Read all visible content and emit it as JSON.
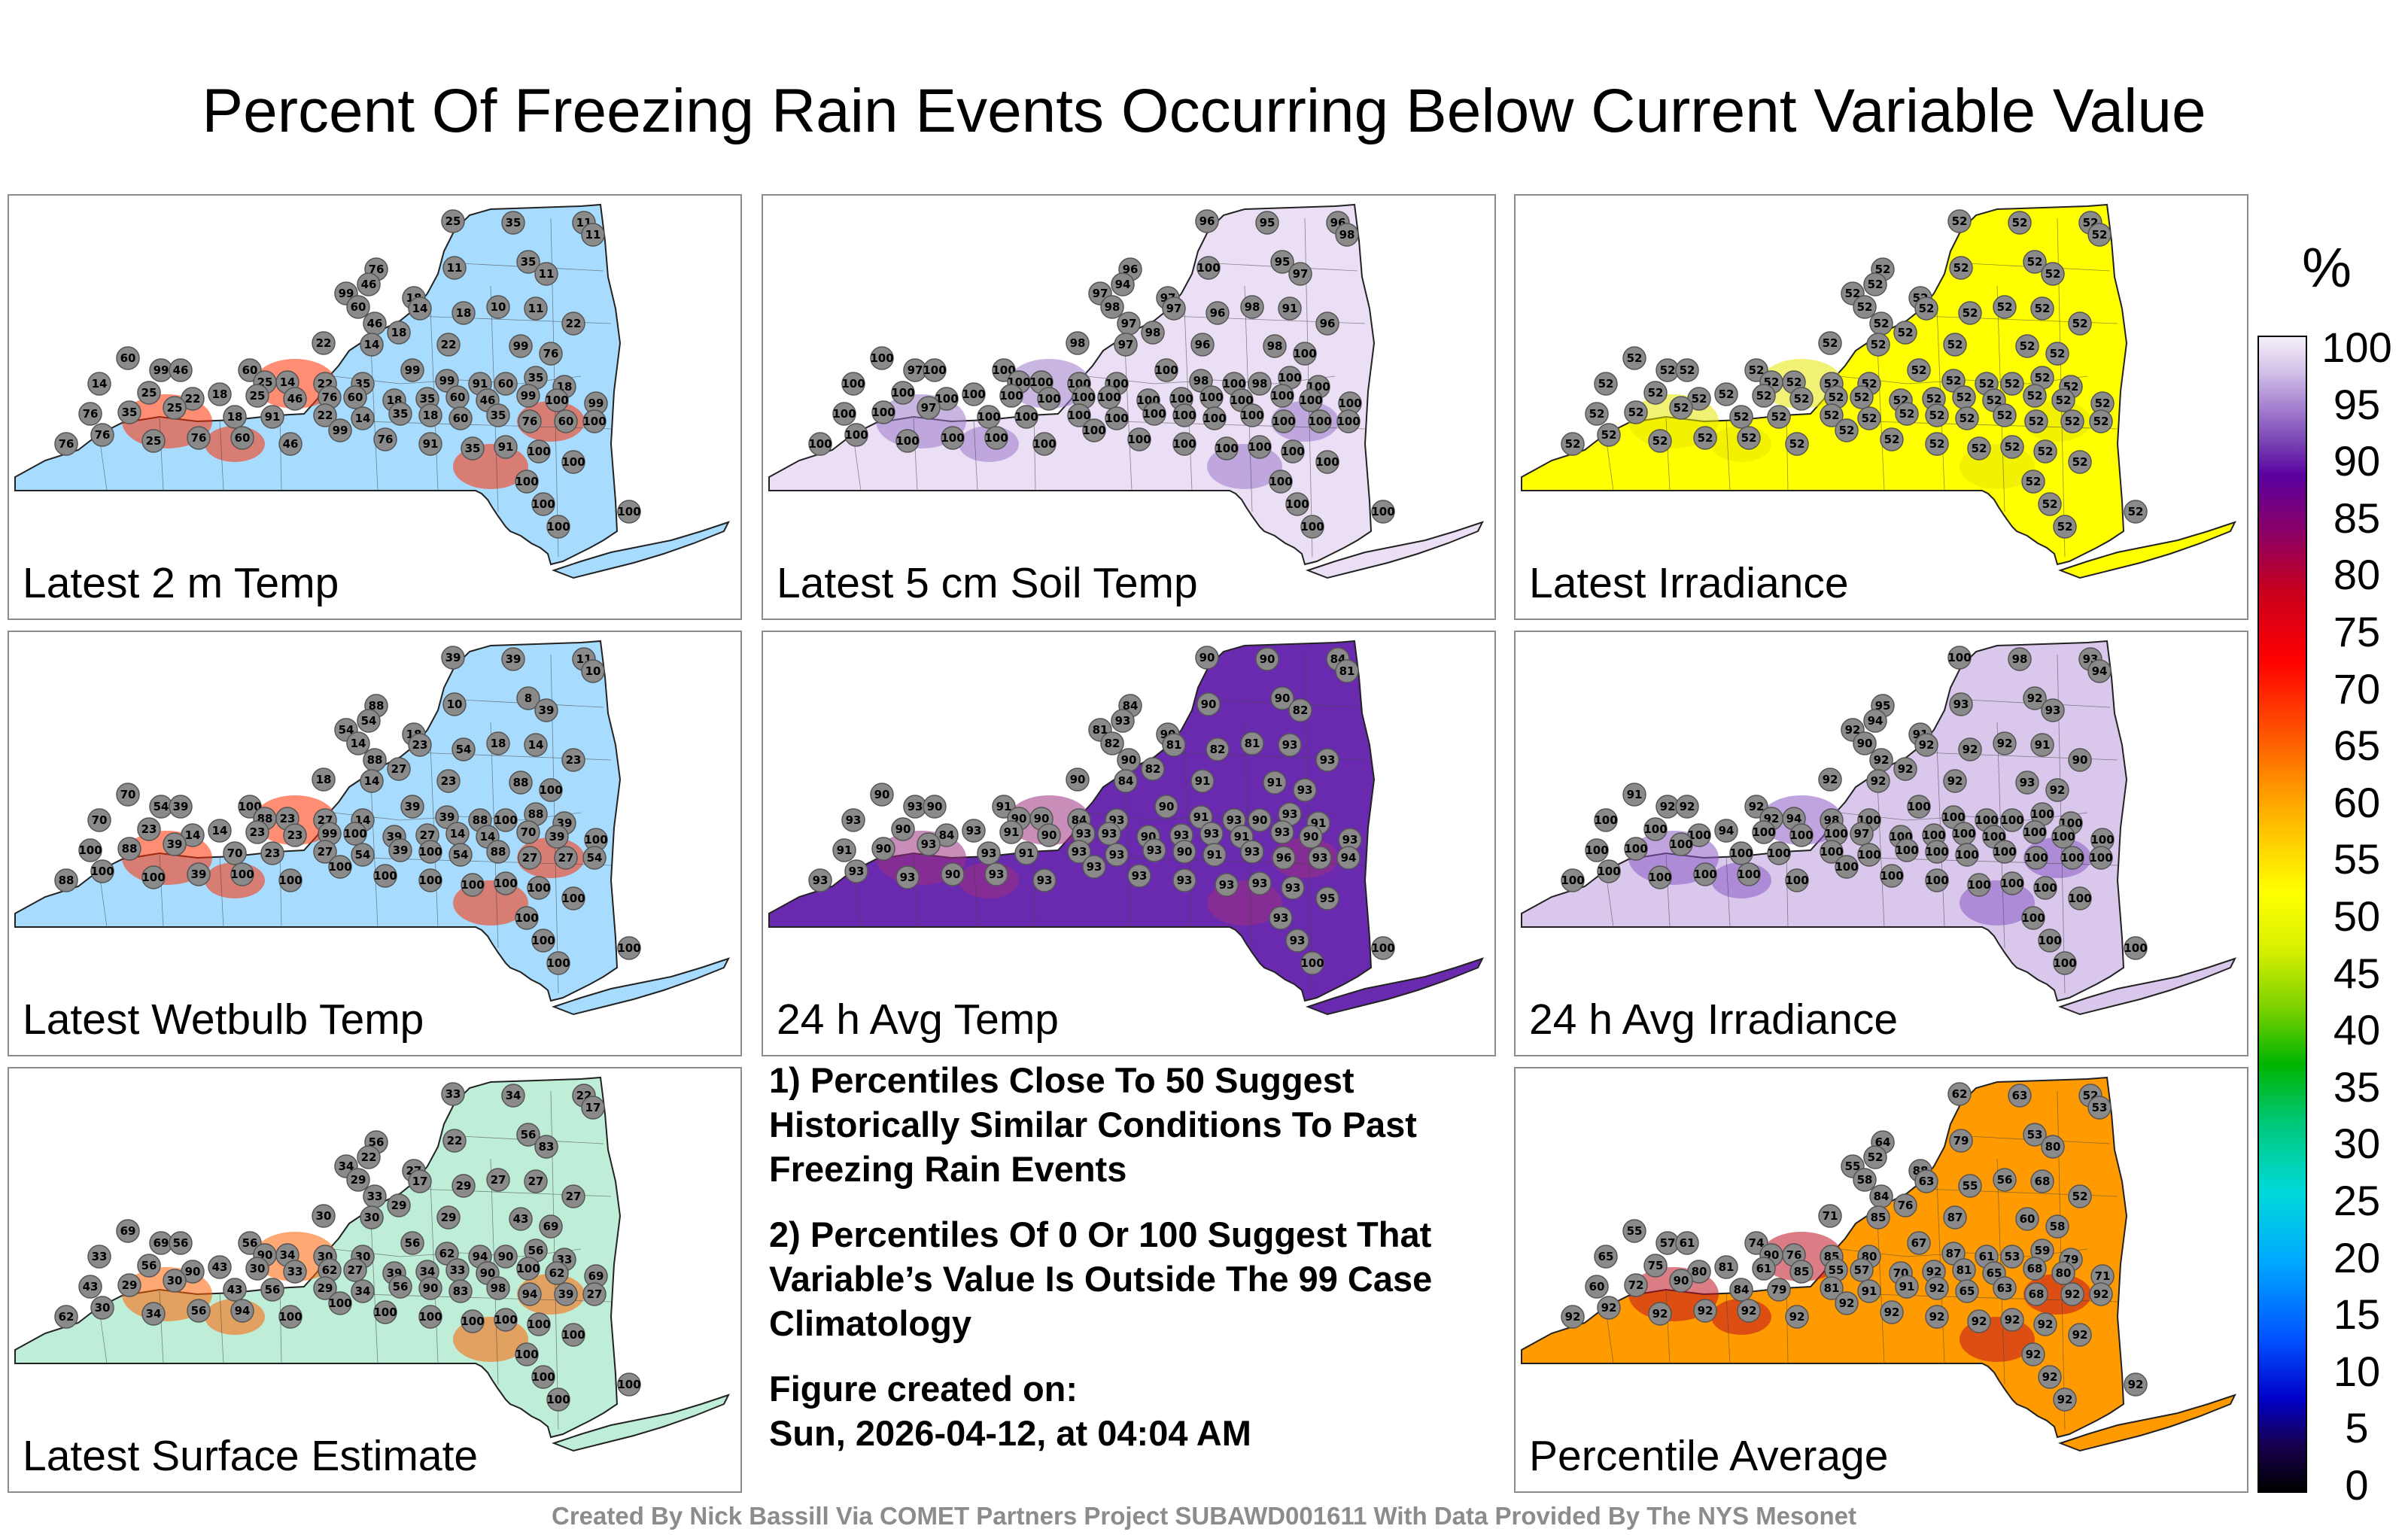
{
  "title": "Percent Of Freezing Rain Events Occurring Below Current Variable Value",
  "footer": "Created By Nick Bassill Via COMET Partners Project SUBAWD001611 With Data Provided By The NYS Mesonet",
  "colorbar": {
    "unit": "%",
    "ticks": [
      "100",
      "95",
      "90",
      "85",
      "80",
      "75",
      "70",
      "65",
      "60",
      "55",
      "50",
      "45",
      "40",
      "35",
      "30",
      "25",
      "20",
      "15",
      "10",
      "5",
      "0"
    ]
  },
  "notes": {
    "line1": "1) Percentiles Close To 50 Suggest Historically Similar Conditions To Past Freezing Rain Events",
    "line2": "2) Percentiles Of 0 Or 100 Suggest That Variable’s Value Is Outside The 99 Case Climatology",
    "created_label": "Figure created on:",
    "created_value": "Sun, 2026-04-12, at 04:04 AM"
  },
  "panels": [
    {
      "label": "Latest 2 m Temp",
      "fill": "#a8dcff",
      "accent": "#ff3000",
      "values": [
        "25",
        "35",
        "11",
        "11",
        "76",
        "46",
        "11",
        "35",
        "11",
        "99",
        "60",
        "18",
        "14",
        "18",
        "10",
        "11",
        "22",
        "46",
        "18",
        "14",
        "22",
        "22",
        "99",
        "76",
        "60",
        "99",
        "46",
        "60",
        "25",
        "14",
        "22",
        "35",
        "99",
        "99",
        "91",
        "60",
        "35",
        "18",
        "14",
        "25",
        "22",
        "18",
        "25",
        "46",
        "76",
        "60",
        "18",
        "35",
        "60",
        "46",
        "99",
        "100",
        "99",
        "76",
        "35",
        "25",
        "18",
        "91",
        "22",
        "14",
        "35",
        "18",
        "60",
        "35",
        "76",
        "60",
        "100",
        "76",
        "76",
        "25",
        "76",
        "60",
        "46",
        "99",
        "76",
        "91",
        "35",
        "91",
        "100",
        "100",
        "100",
        "100",
        "100",
        "100"
      ]
    },
    {
      "label": "Latest 5 cm Soil Temp",
      "fill": "#eadff5",
      "accent": "#9a78c8",
      "values": [
        "96",
        "95",
        "96",
        "98",
        "96",
        "94",
        "100",
        "95",
        "97",
        "97",
        "98",
        "97",
        "97",
        "96",
        "98",
        "91",
        "96",
        "97",
        "98",
        "97",
        "98",
        "96",
        "98",
        "100",
        "100",
        "97",
        "100",
        "100",
        "100",
        "100",
        "100",
        "100",
        "100",
        "98",
        "100",
        "98",
        "100",
        "100",
        "100",
        "100",
        "100",
        "100",
        "100",
        "100",
        "100",
        "100",
        "100",
        "100",
        "100",
        "100",
        "100",
        "100",
        "100",
        "100",
        "100",
        "97",
        "100",
        "100",
        "100",
        "100",
        "100",
        "100",
        "100",
        "100",
        "100",
        "100",
        "100",
        "100",
        "100",
        "100",
        "100",
        "100",
        "100",
        "100",
        "100",
        "100",
        "100",
        "100",
        "100",
        "100",
        "100",
        "100",
        "100",
        "100"
      ]
    },
    {
      "label": "Latest Irradiance",
      "fill": "#ffff00",
      "accent": "#e6e600",
      "values": [
        "52",
        "52",
        "52",
        "52",
        "52",
        "52",
        "52",
        "52",
        "52",
        "52",
        "52",
        "52",
        "52",
        "52",
        "52",
        "52",
        "52",
        "52",
        "52",
        "52",
        "52",
        "52",
        "52",
        "52",
        "52",
        "52",
        "52",
        "52",
        "52",
        "52",
        "52",
        "52",
        "52",
        "52",
        "52",
        "52",
        "52",
        "52",
        "52",
        "52",
        "52",
        "52",
        "52",
        "52",
        "52",
        "52",
        "52",
        "52",
        "52",
        "52",
        "52",
        "52",
        "52",
        "52",
        "52",
        "52",
        "52",
        "52",
        "52",
        "52",
        "52",
        "52",
        "52",
        "52",
        "52",
        "52",
        "52",
        "52",
        "52",
        "52",
        "52",
        "52",
        "52",
        "52",
        "52",
        "52",
        "52",
        "52",
        "52",
        "52",
        "52",
        "52",
        "52",
        "52"
      ]
    },
    {
      "label": "Latest Wetbulb Temp",
      "fill": "#a8dcff",
      "accent": "#ff3000",
      "values": [
        "39",
        "39",
        "11",
        "10",
        "88",
        "54",
        "10",
        "8",
        "39",
        "54",
        "14",
        "18",
        "23",
        "54",
        "18",
        "14",
        "23",
        "88",
        "27",
        "14",
        "18",
        "23",
        "88",
        "100",
        "70",
        "54",
        "39",
        "100",
        "88",
        "23",
        "27",
        "14",
        "39",
        "39",
        "88",
        "100",
        "88",
        "39",
        "70",
        "23",
        "14",
        "14",
        "23",
        "23",
        "99",
        "100",
        "39",
        "27",
        "14",
        "14",
        "70",
        "39",
        "100",
        "100",
        "88",
        "39",
        "70",
        "23",
        "27",
        "54",
        "39",
        "100",
        "54",
        "88",
        "27",
        "27",
        "54",
        "88",
        "100",
        "100",
        "39",
        "100",
        "100",
        "100",
        "100",
        "100",
        "100",
        "100",
        "100",
        "100",
        "100",
        "100",
        "100",
        "100"
      ]
    },
    {
      "label": "24 h Avg Temp",
      "fill": "#6a2ab0",
      "accent": "#9a3080",
      "values": [
        "90",
        "90",
        "84",
        "81",
        "84",
        "93",
        "90",
        "90",
        "82",
        "81",
        "82",
        "90",
        "81",
        "82",
        "81",
        "93",
        "93",
        "90",
        "82",
        "84",
        "90",
        "91",
        "91",
        "93",
        "90",
        "93",
        "90",
        "91",
        "90",
        "90",
        "84",
        "93",
        "90",
        "91",
        "93",
        "90",
        "93",
        "91",
        "93",
        "90",
        "84",
        "93",
        "91",
        "90",
        "93",
        "93",
        "90",
        "93",
        "93",
        "91",
        "93",
        "90",
        "93",
        "91",
        "90",
        "93",
        "93",
        "91",
        "93",
        "93",
        "93",
        "90",
        "91",
        "93",
        "96",
        "93",
        "94",
        "93",
        "93",
        "93",
        "90",
        "93",
        "93",
        "93",
        "93",
        "93",
        "93",
        "93",
        "93",
        "95",
        "93",
        "93",
        "100",
        "100"
      ]
    },
    {
      "label": "24 h Avg Irradiance",
      "fill": "#d9c8ec",
      "accent": "#8a5ac4",
      "values": [
        "100",
        "98",
        "93",
        "94",
        "95",
        "94",
        "93",
        "92",
        "93",
        "92",
        "90",
        "91",
        "92",
        "92",
        "92",
        "91",
        "90",
        "92",
        "92",
        "92",
        "92",
        "92",
        "93",
        "92",
        "91",
        "92",
        "92",
        "92",
        "92",
        "94",
        "98",
        "100",
        "100",
        "100",
        "100",
        "100",
        "100",
        "100",
        "100",
        "100",
        "100",
        "94",
        "100",
        "100",
        "100",
        "97",
        "100",
        "100",
        "100",
        "100",
        "100",
        "100",
        "100",
        "100",
        "100",
        "100",
        "100",
        "100",
        "100",
        "100",
        "100",
        "100",
        "100",
        "100",
        "100",
        "100",
        "100",
        "100",
        "100",
        "100",
        "100",
        "100",
        "100",
        "100",
        "100",
        "100",
        "100",
        "100",
        "100",
        "100",
        "100",
        "100",
        "100",
        "100"
      ]
    },
    {
      "label": "Latest Surface Estimate",
      "fill": "#bfeed8",
      "accent": "#ff6000",
      "values": [
        "33",
        "34",
        "22",
        "17",
        "56",
        "22",
        "22",
        "56",
        "83",
        "34",
        "29",
        "27",
        "17",
        "29",
        "27",
        "27",
        "27",
        "33",
        "29",
        "30",
        "30",
        "29",
        "43",
        "69",
        "69",
        "69",
        "56",
        "56",
        "90",
        "34",
        "30",
        "30",
        "56",
        "62",
        "94",
        "90",
        "56",
        "33",
        "33",
        "56",
        "90",
        "43",
        "30",
        "33",
        "62",
        "27",
        "39",
        "34",
        "33",
        "90",
        "100",
        "62",
        "69",
        "43",
        "29",
        "30",
        "43",
        "56",
        "29",
        "34",
        "56",
        "90",
        "83",
        "98",
        "94",
        "39",
        "27",
        "62",
        "30",
        "34",
        "56",
        "94",
        "100",
        "100",
        "100",
        "100",
        "100",
        "100",
        "100",
        "100",
        "100",
        "100",
        "100",
        "100"
      ]
    },
    {
      "label": "Percentile Average",
      "fill": "#ff9a00",
      "accent": "#c01020",
      "values": [
        "62",
        "63",
        "52",
        "53",
        "64",
        "52",
        "79",
        "53",
        "80",
        "55",
        "58",
        "88",
        "63",
        "55",
        "56",
        "68",
        "52",
        "84",
        "76",
        "85",
        "71",
        "87",
        "60",
        "58",
        "55",
        "57",
        "61",
        "74",
        "90",
        "76",
        "85",
        "80",
        "67",
        "87",
        "61",
        "53",
        "59",
        "79",
        "65",
        "75",
        "80",
        "81",
        "61",
        "85",
        "55",
        "57",
        "70",
        "92",
        "81",
        "65",
        "68",
        "80",
        "71",
        "60",
        "72",
        "90",
        "84",
        "79",
        "81",
        "91",
        "91",
        "92",
        "65",
        "63",
        "68",
        "92",
        "92",
        "92",
        "92",
        "92",
        "92",
        "92",
        "92",
        "92",
        "92",
        "92",
        "92",
        "92",
        "92",
        "92",
        "92",
        "92",
        "92",
        "92"
      ]
    }
  ]
}
